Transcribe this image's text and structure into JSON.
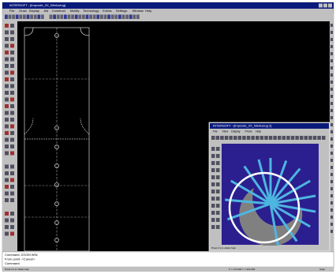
{
  "app": {
    "title": "INTERSOFT - [tmpcode_2X_Werkzeug]",
    "menu": [
      "File",
      "Draw",
      "Display",
      "Aid",
      "Construct",
      "Modify",
      "Technology",
      "Extras",
      "Settings",
      "Window",
      "Help"
    ]
  },
  "child_window": {
    "title": "INTERSOFT - [tmpcode_2X_Werkzeug 2]",
    "menu": [
      "File",
      "View",
      "Display",
      "Photo",
      "Help"
    ],
    "status": "Press F1 to obtain help"
  },
  "command_area": {
    "lines": [
      "Command:  ZOOM WIN",
      "From point:  <Cancel>",
      "Command:"
    ]
  },
  "status_bar": {
    "help": "Press F1 to obtain help",
    "coordinates": "X = 170.000    Y = 322.000",
    "mode": "Snap"
  }
}
